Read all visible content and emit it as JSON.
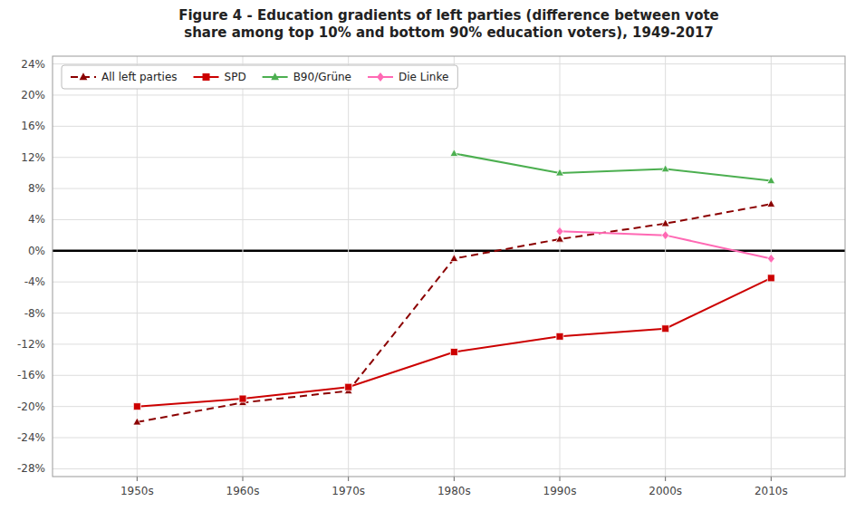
{
  "chart_data": {
    "type": "line",
    "title": "Figure 4 - Education gradients of left parties (difference between vote\nshare among top 10% and bottom 90% education voters), 1949-2017",
    "series": [
      {
        "name": "All left parties",
        "color": "#8B0000",
        "marker": "triangle",
        "line_style": "dashed",
        "x": [
          1950,
          1960,
          1970,
          1980,
          1990,
          2000,
          2010
        ],
        "values": [
          -22,
          -19.5,
          -18,
          -1,
          1.5,
          3.5,
          6
        ]
      },
      {
        "name": "SPD",
        "color": "#CC0000",
        "marker": "square",
        "line_style": "solid",
        "x": [
          1950,
          1960,
          1970,
          1980,
          1990,
          2000,
          2010
        ],
        "values": [
          -20,
          -19,
          -17.5,
          -13,
          -11,
          -10,
          -3.5
        ]
      },
      {
        "name": "B90/Grüne",
        "color": "#4CAF50",
        "marker": "triangle",
        "line_style": "solid",
        "x": [
          1980,
          1990,
          2000,
          2010
        ],
        "values": [
          12.5,
          10,
          10.5,
          9
        ]
      },
      {
        "name": "Die Linke",
        "color": "#FF69B4",
        "marker": "diamond",
        "line_style": "solid",
        "x": [
          1990,
          2000,
          2010
        ],
        "values": [
          2.5,
          2,
          -1
        ]
      }
    ],
    "xlim": [
      1942,
      2017
    ],
    "xticks": [
      {
        "value": 1950,
        "label": "1950s"
      },
      {
        "value": 1960,
        "label": "1960s"
      },
      {
        "value": 1970,
        "label": "1970s"
      },
      {
        "value": 1980,
        "label": "1980s"
      },
      {
        "value": 1990,
        "label": "1990s"
      },
      {
        "value": 2000,
        "label": "2000s"
      },
      {
        "value": 2010,
        "label": "2010s"
      }
    ],
    "ylim": [
      -29,
      25
    ],
    "yticks": [
      {
        "value": -28,
        "label": "-28%"
      },
      {
        "value": -24,
        "label": "-24%"
      },
      {
        "value": -20,
        "label": "-20%"
      },
      {
        "value": -16,
        "label": "-16%"
      },
      {
        "value": -12,
        "label": "-12%"
      },
      {
        "value": -8,
        "label": "-8%"
      },
      {
        "value": -4,
        "label": "-4%"
      },
      {
        "value": 0,
        "label": "0%"
      },
      {
        "value": 4,
        "label": "4%"
      },
      {
        "value": 8,
        "label": "8%"
      },
      {
        "value": 12,
        "label": "12%"
      },
      {
        "value": 16,
        "label": "16%"
      },
      {
        "value": 20,
        "label": "20%"
      },
      {
        "value": 24,
        "label": "24%"
      }
    ],
    "grid": true,
    "legend": "upper left"
  }
}
